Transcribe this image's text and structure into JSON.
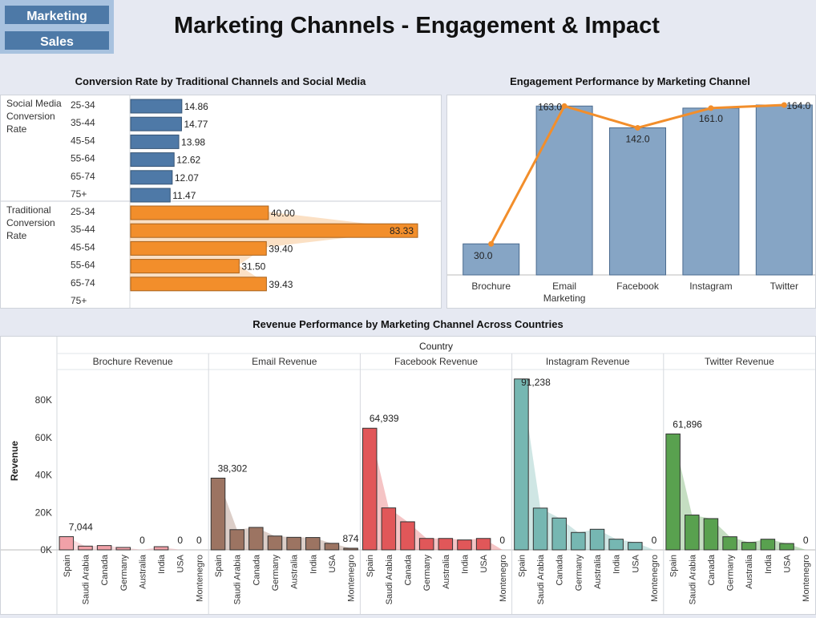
{
  "nav": {
    "marketing_label": "Marketing",
    "sales_label": "Sales"
  },
  "dashboard_title": "Marketing Channels - Engagement & Impact",
  "colors": {
    "social": "#4e79a7",
    "traditional": "#f28e2b",
    "engagement_bar": "#86a5c5",
    "engagement_line": "#f28e2b",
    "brochure": "#f1a1a8",
    "email": "#9c7462",
    "facebook": "#e15759",
    "instagram": "#76b7b2",
    "twitter": "#59a14f"
  },
  "chart_data": [
    {
      "type": "bar",
      "orientation": "horizontal",
      "title": "Conversion Rate by Traditional Channels and Social Media",
      "categories": [
        "25-34",
        "35-44",
        "45-54",
        "55-64",
        "65-74",
        "75+"
      ],
      "series": [
        {
          "name": "Social Media Conversion Rate",
          "values": [
            14.86,
            14.77,
            13.98,
            12.62,
            12.07,
            11.47
          ],
          "labels": [
            "14.86",
            "14.77",
            "13.98",
            "12.62",
            "12.07",
            "11.47"
          ]
        },
        {
          "name": "Traditional Conversion Rate",
          "values": [
            40.0,
            83.33,
            39.4,
            31.5,
            39.43,
            null
          ],
          "labels": [
            "40.00",
            "83.33",
            "39.40",
            "31.50",
            "39.43",
            ""
          ]
        }
      ],
      "group_labels": [
        "Social Media\nConversion\nRate",
        "Traditional\nConversion\nRate"
      ]
    },
    {
      "type": "bar",
      "title": "Engagement Performance by Marketing Channel",
      "categories": [
        "Brochure",
        "Email\nMarketing",
        "Facebook",
        "Instagram",
        "Twitter"
      ],
      "values": [
        30.0,
        163.0,
        142.0,
        161.0,
        164.0
      ],
      "labels": [
        "30.0",
        "163.0",
        "142.0",
        "161.0",
        "164.0"
      ],
      "overlay": "line"
    },
    {
      "type": "bar",
      "title": "Revenue Performance by Marketing Channel Across Countries",
      "column_header": "Country",
      "ylabel": "Revenue",
      "yticks": [
        "0K",
        "20K",
        "40K",
        "60K",
        "80K"
      ],
      "ylim": [
        0,
        95000
      ],
      "categories": [
        "Spain",
        "Saudi Arabia",
        "Canada",
        "Germany",
        "Australia",
        "India",
        "USA",
        "Montenegro"
      ],
      "series": [
        {
          "name": "Brochure  Revenue",
          "values": [
            7044,
            2000,
            2300,
            1300,
            0,
            1700,
            0,
            0
          ],
          "labels": [
            "7,044",
            "",
            "",
            "",
            "0",
            "",
            "0",
            "0"
          ]
        },
        {
          "name": "Email Revenue",
          "values": [
            38302,
            10800,
            12000,
            7400,
            6700,
            6600,
            3500,
            874
          ],
          "labels": [
            "38,302",
            "",
            "",
            "",
            "",
            "",
            "",
            "874"
          ]
        },
        {
          "name": "Facebook Revenue",
          "values": [
            64939,
            22400,
            15000,
            6100,
            6100,
            5300,
            6100,
            0
          ],
          "labels": [
            "64,939",
            "",
            "",
            "",
            "",
            "",
            "",
            "0"
          ]
        },
        {
          "name": "Instagram Revenue",
          "values": [
            91238,
            22300,
            17000,
            9300,
            11000,
            5700,
            4000,
            0
          ],
          "labels": [
            "91,238",
            "",
            "",
            "",
            "",
            "",
            "",
            "0"
          ]
        },
        {
          "name": "Twitter Revenue",
          "values": [
            61896,
            18600,
            16700,
            7000,
            4000,
            5700,
            3400,
            0
          ],
          "labels": [
            "61,896",
            "",
            "",
            "",
            "",
            "",
            "",
            "0"
          ]
        }
      ]
    }
  ]
}
